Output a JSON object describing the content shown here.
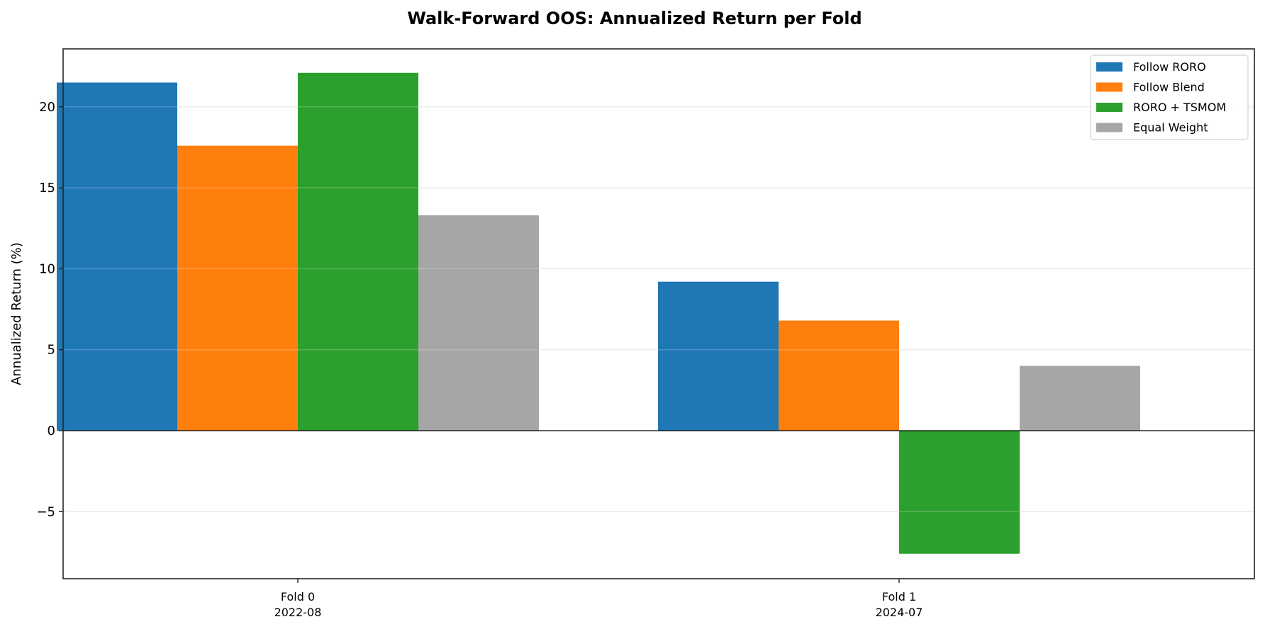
{
  "chart_data": {
    "type": "bar",
    "title": "Walk-Forward OOS: Annualized Return per Fold",
    "xlabel": "",
    "ylabel": "Annualized Return (%)",
    "categories": [
      "Fold 0\n2022-08",
      "Fold 1\n2024-07"
    ],
    "category_lines": [
      [
        "Fold 0",
        "2022-08"
      ],
      [
        "Fold 1",
        "2024-07"
      ]
    ],
    "series": [
      {
        "name": "Follow RORO",
        "color": "#1f77b4",
        "values": [
          21.5,
          9.2
        ]
      },
      {
        "name": "Follow Blend",
        "color": "#ff7f0e",
        "values": [
          17.6,
          6.8
        ]
      },
      {
        "name": "RORO + TSMOM",
        "color": "#2ca02c",
        "values": [
          22.1,
          -7.6
        ]
      },
      {
        "name": "Equal Weight",
        "color": "#a6a6a6",
        "values": [
          13.3,
          4.0
        ]
      }
    ],
    "yticks": [
      -5,
      0,
      5,
      10,
      15,
      20
    ],
    "ytick_labels": [
      "−5",
      "0",
      "5",
      "10",
      "15",
      "20"
    ],
    "ylim": [
      -9.1,
      23.6
    ],
    "grid": {
      "y": true,
      "x": false,
      "color": "#e6e6e6"
    },
    "zero_line": true,
    "legend_position": "upper right"
  }
}
